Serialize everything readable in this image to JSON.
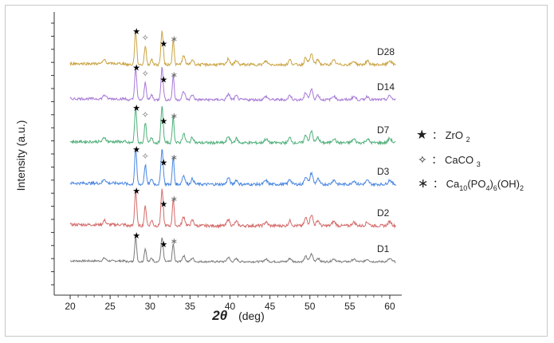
{
  "chart_data": {
    "type": "line",
    "title": "",
    "xlabel_main": "2θ",
    "xlabel_unit": "(deg)",
    "ylabel": "Intensity (a.u.)",
    "xlim": [
      18,
      61.5
    ],
    "xticks": [
      20,
      25,
      30,
      35,
      40,
      45,
      50,
      55,
      60
    ],
    "series": [
      {
        "name": "D1",
        "color": "#7a7a7a",
        "offset": 0
      },
      {
        "name": "D2",
        "color": "#d46a6a",
        "offset": 1
      },
      {
        "name": "D3",
        "color": "#4a86e0",
        "offset": 2
      },
      {
        "name": "D7",
        "color": "#4fb07a",
        "offset": 3
      },
      {
        "name": "D14",
        "color": "#a77ad6",
        "offset": 4
      },
      {
        "name": "D28",
        "color": "#caa443",
        "offset": 5
      }
    ],
    "peaks_relative": [
      {
        "x": 24.3,
        "h": 0.12,
        "w": 0.25
      },
      {
        "x": 28.2,
        "h": 1.0,
        "w": 0.18
      },
      {
        "x": 29.4,
        "h": 0.55,
        "w": 0.18
      },
      {
        "x": 30.2,
        "h": 0.15,
        "w": 0.2
      },
      {
        "x": 31.5,
        "h": 1.0,
        "w": 0.2
      },
      {
        "x": 32.9,
        "h": 0.75,
        "w": 0.16
      },
      {
        "x": 34.2,
        "h": 0.25,
        "w": 0.25
      },
      {
        "x": 35.3,
        "h": 0.15,
        "w": 0.25
      },
      {
        "x": 39.8,
        "h": 0.18,
        "w": 0.25
      },
      {
        "x": 40.8,
        "h": 0.12,
        "w": 0.25
      },
      {
        "x": 44.5,
        "h": 0.1,
        "w": 0.3
      },
      {
        "x": 47.5,
        "h": 0.14,
        "w": 0.25
      },
      {
        "x": 49.5,
        "h": 0.22,
        "w": 0.25
      },
      {
        "x": 50.2,
        "h": 0.32,
        "w": 0.25
      },
      {
        "x": 51.0,
        "h": 0.15,
        "w": 0.25
      },
      {
        "x": 53.0,
        "h": 0.12,
        "w": 0.3
      },
      {
        "x": 55.5,
        "h": 0.1,
        "w": 0.3
      },
      {
        "x": 57.2,
        "h": 0.1,
        "w": 0.3
      },
      {
        "x": 60.0,
        "h": 0.12,
        "w": 0.3
      }
    ],
    "annotations": [
      {
        "symbol": "★",
        "x": 28.3,
        "phase": "ZrO2"
      },
      {
        "symbol": "✧",
        "x": 29.4,
        "phase": "CaCO3"
      },
      {
        "symbol": "★",
        "x": 31.7,
        "phase": "ZrO2"
      },
      {
        "symbol": "∗",
        "x": 33.0,
        "phase": "Ca10(PO4)6(OH)2"
      }
    ],
    "legend": [
      {
        "symbol": "★",
        "sep": "：",
        "base": "ZrO",
        "sub": "2",
        "tail": ""
      },
      {
        "symbol": "✧",
        "sep": "：",
        "base": "CaCO",
        "sub": "3",
        "tail": ""
      },
      {
        "symbol": "∗",
        "sep": "：",
        "parts": [
          "Ca",
          "10",
          "(PO",
          "4",
          ")",
          "6",
          "(OH)",
          "2"
        ]
      }
    ]
  }
}
